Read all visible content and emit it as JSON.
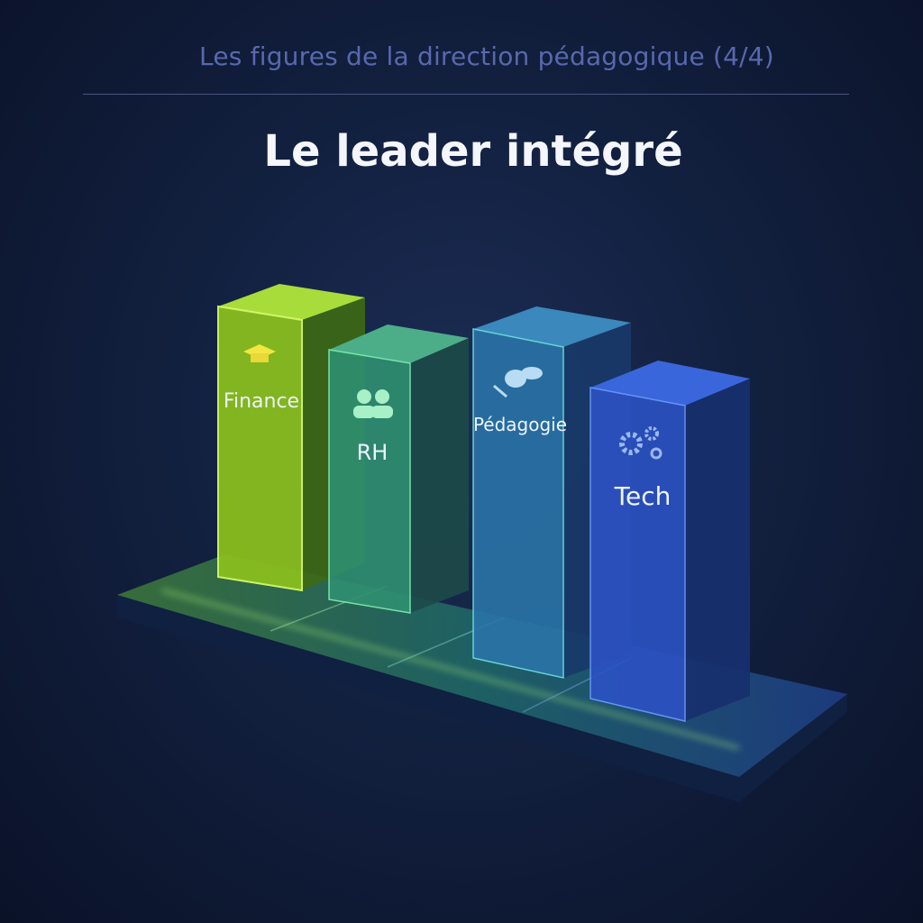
{
  "header": {
    "subtitle": "Les figures de la direction pédagogique (4/4)",
    "title": "Le leader intégré"
  },
  "pillars": [
    {
      "label": "Finance",
      "icon": "graduation-cap-icon",
      "color": "#9bd422"
    },
    {
      "label": "RH",
      "icon": "people-icon",
      "color": "#3aa877"
    },
    {
      "label": "Pédagogie",
      "icon": "books-icon",
      "color": "#2e80b4"
    },
    {
      "label": "Tech",
      "icon": "gears-icon",
      "color": "#2f5ad2"
    }
  ]
}
